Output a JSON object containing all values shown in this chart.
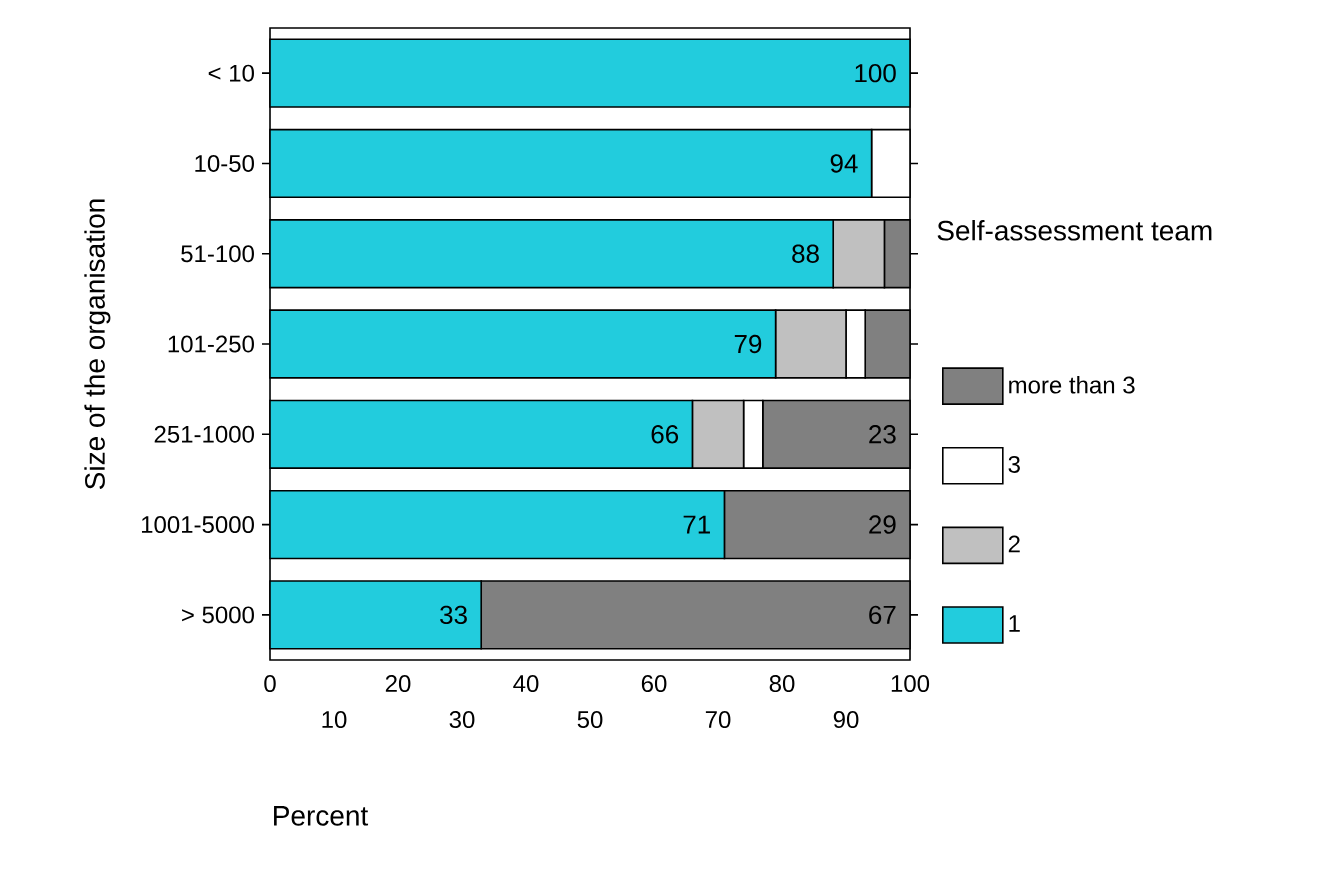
{
  "chart_data": {
    "type": "bar",
    "orientation": "horizontal",
    "stacked": true,
    "categories": [
      "< 10",
      "10-50",
      "51-100",
      "101-250",
      "251-1000",
      "1001-5000",
      "> 5000"
    ],
    "xlabel": "Percent",
    "ylabel": "Size of the organisation",
    "legend_title": "Self-assessment team",
    "xlim": [
      0,
      100
    ],
    "xticks": [
      0,
      20,
      40,
      60,
      80,
      100
    ],
    "x2lim": [
      0,
      100
    ],
    "x2ticks": [
      10,
      30,
      50,
      70,
      90
    ],
    "legend": "right",
    "series": [
      {
        "name": "1",
        "color": "#22ccdd",
        "values": [
          100,
          94,
          88,
          79,
          66,
          71,
          33
        ],
        "value_labels": [
          "100",
          "94",
          "88",
          "79",
          "66",
          "71",
          "33"
        ]
      },
      {
        "name": "2",
        "color": "#c0c0c0",
        "values": [
          0,
          0,
          8,
          11,
          8,
          0,
          0
        ]
      },
      {
        "name": "3",
        "color": "#ffffff",
        "values": [
          0,
          6,
          0,
          3,
          3,
          0,
          0
        ]
      },
      {
        "name": "more than 3",
        "color": "#808080",
        "values": [
          0,
          0,
          4,
          7,
          23,
          29,
          67
        ],
        "value_labels": [
          null,
          null,
          null,
          null,
          "23",
          "29",
          "67"
        ]
      }
    ]
  }
}
